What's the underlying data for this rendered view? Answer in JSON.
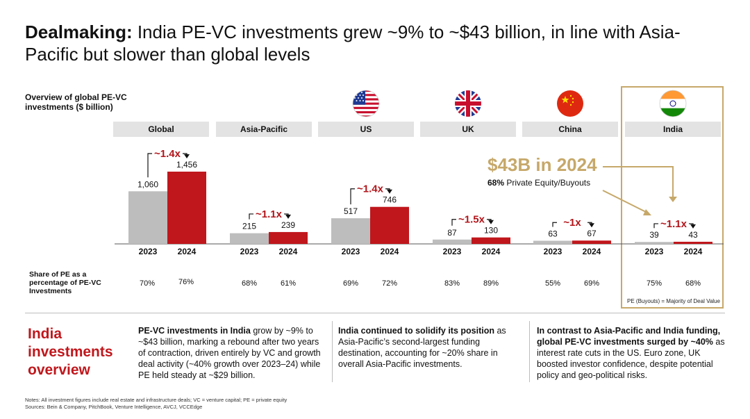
{
  "title": {
    "bold": "Dealmaking:",
    "rest": " India PE-VC investments grew ~9% to ~$43 billion, in line with Asia-Pacific but slower than global levels"
  },
  "overview_label": "Overview of global PE-VC investments ($ billion)",
  "share_label": "Share of PE as a percentage of PE-VC Investments",
  "callout": {
    "value": "$43B in 2024",
    "sub_bold": "68%",
    "sub_rest": " Private Equity/Buyouts"
  },
  "pe_note": "PE (Buyouts) = Majority of Deal Value",
  "colors": {
    "bar_2023": "#bdbdbd",
    "bar_2024": "#c0171c",
    "growth_label": "#b2161b",
    "india_highlight": "#c6a869",
    "header_bg": "#e3e3e3"
  },
  "chart_data": {
    "type": "bar",
    "categories": [
      "Global",
      "Asia-Pacific",
      "US",
      "UK",
      "China",
      "India"
    ],
    "years": [
      "2023",
      "2024"
    ],
    "series": [
      {
        "name": "2023",
        "values": [
          1060,
          215,
          517,
          87,
          63,
          39
        ]
      },
      {
        "name": "2024",
        "values": [
          1456,
          239,
          746,
          130,
          67,
          43
        ]
      }
    ],
    "value_labels_2023": [
      "1,060",
      "215",
      "517",
      "87",
      "63",
      "39"
    ],
    "value_labels_2024": [
      "1,456",
      "239",
      "746",
      "130",
      "67",
      "43"
    ],
    "growth_labels": [
      "~1.4x",
      "~1.1x",
      "~1.4x",
      "~1.5x",
      "~1x",
      "~1.1x"
    ],
    "pe_share_2023": [
      "70%",
      "68%",
      "69%",
      "83%",
      "55%",
      "75%"
    ],
    "pe_share_2024": [
      "76%",
      "61%",
      "72%",
      "89%",
      "69%",
      "68%"
    ],
    "ylim": [
      0,
      1456
    ]
  },
  "overview": {
    "title": "India investments overview",
    "col1_bold": "PE-VC investments in India",
    "col1_rest": " grow by ~9% to ~$43 billion, marking a rebound after two years of contraction, driven entirely by VC and growth deal activity (~40% growth over 2023–24) while PE held steady at ~$29 billion.",
    "col2_bold": "India continued to solidify its position",
    "col2_rest": " as Asia-Pacific’s second-largest funding destination, accounting for ~20% share in overall Asia-Pacific investments.",
    "col3_bold": "In contrast to Asia-Pacific and India funding, global PE-VC investments surged by ~40%",
    "col3_rest": " as interest rate cuts in the US. Euro zone, UK boosted investor confidence, despite potential policy and geo-political risks."
  },
  "notes": {
    "line1": "Notes: All investment figures include real estate and infrastructure deals; VC = venture capital; PE = private equity",
    "line2": "Sources: Bein & Company, PitchBook, Venture Intelligence, AVCJ, VCCEdge"
  }
}
